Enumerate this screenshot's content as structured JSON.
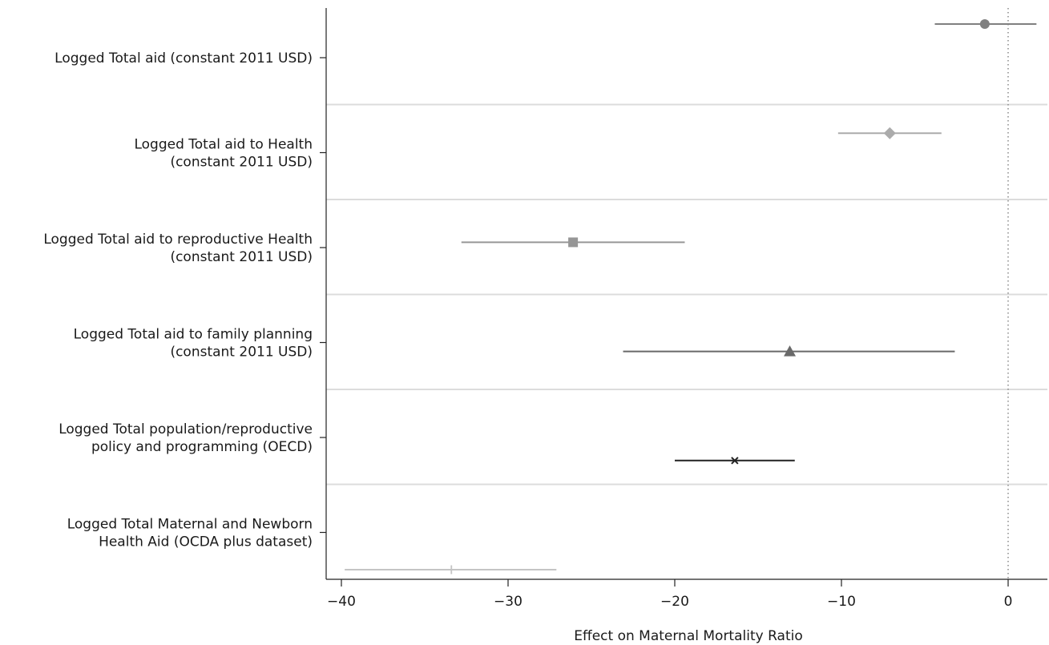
{
  "chart_data": {
    "type": "scatter",
    "subtype": "coefficient-plot",
    "title": "",
    "xlabel": "Effect on Maternal Mortality Ratio",
    "ylabel": "",
    "xlim": [
      -40.8,
      2.3
    ],
    "xticks": [
      -40,
      -30,
      -20,
      -10,
      0
    ],
    "xtick_labels": [
      "−40",
      "−30",
      "−20",
      "−10",
      "0"
    ],
    "reference_line_x": 0,
    "grid": false,
    "legend": "none",
    "categories": [
      {
        "label_lines": [
          "Logged Total aid (constant 2011 USD)"
        ]
      },
      {
        "label_lines": [
          "Logged Total aid to Health",
          "(constant 2011 USD)"
        ]
      },
      {
        "label_lines": [
          "Logged Total aid to reproductive Health",
          "(constant 2011 USD)"
        ]
      },
      {
        "label_lines": [
          "Logged Total aid to family planning",
          "(constant 2011 USD)"
        ]
      },
      {
        "label_lines": [
          "Logged Total population/reproductive",
          "policy and programming (OECD)"
        ]
      },
      {
        "label_lines": [
          "Logged Total Maternal and Newborn",
          "Health Aid (OCDA plus dataset)"
        ]
      }
    ],
    "estimates": [
      {
        "point": -1.4,
        "ci_low": -4.4,
        "ci_high": 1.7,
        "marker": "circle",
        "color": "#808080"
      },
      {
        "point": -7.1,
        "ci_low": -10.2,
        "ci_high": -4.0,
        "marker": "diamond",
        "color": "#ababab"
      },
      {
        "point": -26.1,
        "ci_low": -32.8,
        "ci_high": -19.4,
        "marker": "square",
        "color": "#969696"
      },
      {
        "point": -13.1,
        "ci_low": -23.1,
        "ci_high": -3.2,
        "marker": "triangle",
        "color": "#696969"
      },
      {
        "point": -16.4,
        "ci_low": -20.0,
        "ci_high": -12.8,
        "marker": "x",
        "color": "#222222"
      },
      {
        "point": -33.4,
        "ci_low": -39.8,
        "ci_high": -27.1,
        "marker": "plus",
        "color": "#c4c4c4"
      }
    ]
  }
}
